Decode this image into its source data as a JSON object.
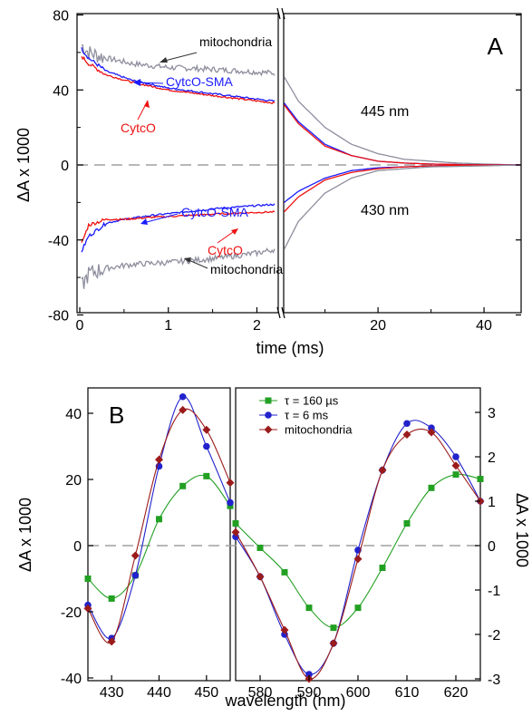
{
  "chart_data": [
    {
      "type": "line",
      "panel_label": "A",
      "xlabel": "time (ms)",
      "ylabel": "ΔA x 1000",
      "ylim": [
        -85,
        85
      ],
      "x_ticks": [
        "0",
        "1",
        "2",
        "20",
        "40"
      ],
      "y_ticks": [
        "80",
        "40",
        "0",
        "-40",
        "-80"
      ],
      "x_axis_break": "after 2.2 ms (linear 0–2.2 ms, then 2.2–47 ms)",
      "wavelength_labels": [
        "445 nm",
        "430 nm"
      ],
      "annotations": [
        "mitochondria",
        "CytcO-SMA",
        "CytcO",
        "CytcO-SMA",
        "CytcO",
        "mitochondria"
      ],
      "series": [
        {
          "group": "445 nm",
          "label": "mitochondria",
          "color": "#8e8e9e",
          "x": [
            0.02,
            0.1,
            0.3,
            0.6,
            1.0,
            1.5,
            2.2,
            2.3,
            5,
            10,
            15,
            20,
            25,
            30,
            35,
            40,
            47
          ],
          "y": [
            64,
            60,
            57,
            54,
            52,
            51,
            49,
            47,
            34,
            20,
            11,
            6,
            3,
            2,
            1,
            0.5,
            0
          ]
        },
        {
          "group": "445 nm",
          "label": "CytcO-SMA",
          "color": "#1a1aff",
          "x": [
            0.02,
            0.1,
            0.3,
            0.6,
            1.0,
            1.5,
            2.2,
            2.3,
            5,
            10,
            15,
            20,
            25,
            30,
            40,
            47
          ],
          "y": [
            62,
            57,
            50,
            45,
            41,
            38,
            34,
            33,
            23,
            11,
            5,
            2,
            1,
            0.5,
            0,
            0
          ]
        },
        {
          "group": "445 nm",
          "label": "CytcO",
          "color": "#ee1111",
          "x": [
            0.02,
            0.1,
            0.3,
            0.6,
            1.0,
            1.5,
            2.2,
            2.3,
            5,
            10,
            15,
            20,
            25,
            30,
            40,
            47
          ],
          "y": [
            58,
            54,
            48,
            44,
            40,
            37,
            33,
            32,
            22,
            10,
            5,
            2,
            1,
            0.5,
            0,
            0
          ]
        },
        {
          "group": "430 nm",
          "label": "CytcO-SMA",
          "color": "#1a1aff",
          "x": [
            0.02,
            0.1,
            0.3,
            0.5,
            0.8,
            1.2,
            1.6,
            2.2,
            2.3,
            5,
            10,
            15,
            20,
            25,
            30,
            40,
            47
          ],
          "y": [
            -46,
            -38,
            -31,
            -29,
            -27,
            -25,
            -23,
            -21,
            -20,
            -14,
            -7,
            -3,
            -1.5,
            -1,
            -0.5,
            0,
            0
          ]
        },
        {
          "group": "430 nm",
          "label": "CytcO",
          "color": "#ee1111",
          "x": [
            0.02,
            0.1,
            0.3,
            0.5,
            0.8,
            1.2,
            1.6,
            2.2,
            2.3,
            5,
            10,
            15,
            20,
            25,
            30,
            40,
            47
          ],
          "y": [
            -42,
            -32,
            -29,
            -29,
            -28,
            -27,
            -26,
            -25,
            -25,
            -17,
            -8,
            -4,
            -2,
            -1,
            -0.5,
            0,
            0
          ]
        },
        {
          "group": "430 nm",
          "label": "mitochondria",
          "color": "#8e8e9e",
          "x": [
            0.02,
            0.1,
            0.3,
            0.6,
            1.0,
            1.5,
            2.0,
            2.2,
            2.3,
            5,
            10,
            15,
            20,
            25,
            30,
            40,
            47
          ],
          "y": [
            -65,
            -58,
            -55,
            -53,
            -52,
            -50,
            -47,
            -45,
            -45,
            -30,
            -15,
            -7,
            -3,
            -2,
            -1,
            -0.5,
            0
          ]
        }
      ]
    },
    {
      "type": "line",
      "panel_label": "B",
      "xlabel": "wavelength (nm)",
      "ylabel_left": "ΔA x 1000",
      "ylabel_right": "ΔA x 1000",
      "legend_position": "top-right",
      "subpanels": [
        {
          "x_range": [
            425,
            455
          ],
          "x_ticks": [
            430,
            440,
            450
          ],
          "ylim": [
            -50,
            47
          ],
          "y_ticks": [
            40,
            20,
            0,
            -20,
            -40
          ],
          "series": [
            {
              "name": "τ = 160 µs",
              "color": "#22a022",
              "marker": "square",
              "x": [
                425,
                430,
                435,
                440,
                445,
                450,
                455
              ],
              "y": [
                -10,
                -16,
                -9,
                8,
                18,
                21,
                12
              ]
            },
            {
              "name": "τ = 6 ms",
              "color": "#2222cc",
              "marker": "circle",
              "x": [
                425,
                430,
                435,
                440,
                445,
                450,
                455
              ],
              "y": [
                -18,
                -28,
                -9,
                24,
                45,
                30,
                13
              ]
            },
            {
              "name": "mitochondria",
              "color": "#9b1b1b",
              "marker": "diamond",
              "x": [
                425,
                430,
                435,
                440,
                445,
                450,
                455
              ],
              "y": [
                -19,
                -29,
                -3,
                26,
                41,
                35,
                19
              ]
            }
          ]
        },
        {
          "x_range": [
            575,
            625
          ],
          "x_ticks": [
            580,
            590,
            600,
            610,
            620
          ],
          "ylim": [
            -3.4,
            3.2
          ],
          "y_ticks": [
            3,
            2,
            1,
            0,
            -1,
            -2,
            -3
          ],
          "series": [
            {
              "name": "τ = 160 µs",
              "color": "#22a022",
              "marker": "square",
              "x": [
                575,
                580,
                585,
                590,
                595,
                600,
                605,
                610,
                615,
                620,
                625
              ],
              "y": [
                0.5,
                -0.05,
                -0.6,
                -1.4,
                -1.85,
                -1.4,
                -0.5,
                0.5,
                1.3,
                1.6,
                1.5
              ]
            },
            {
              "name": "τ = 6 ms",
              "color": "#2222cc",
              "marker": "circle",
              "x": [
                575,
                580,
                585,
                590,
                595,
                600,
                605,
                610,
                615,
                620,
                625
              ],
              "y": [
                0.2,
                -0.7,
                -2.0,
                -2.9,
                -2.2,
                -0.1,
                1.7,
                2.75,
                2.65,
                2.0,
                1.0
              ]
            },
            {
              "name": "mitochondria",
              "color": "#9b1b1b",
              "marker": "diamond",
              "x": [
                575,
                580,
                585,
                590,
                595,
                600,
                605,
                610,
                615,
                620,
                625
              ],
              "y": [
                0.3,
                -0.7,
                -1.9,
                -3.0,
                -2.2,
                -0.3,
                1.7,
                2.5,
                2.55,
                1.8,
                1.0
              ]
            }
          ]
        }
      ]
    }
  ]
}
